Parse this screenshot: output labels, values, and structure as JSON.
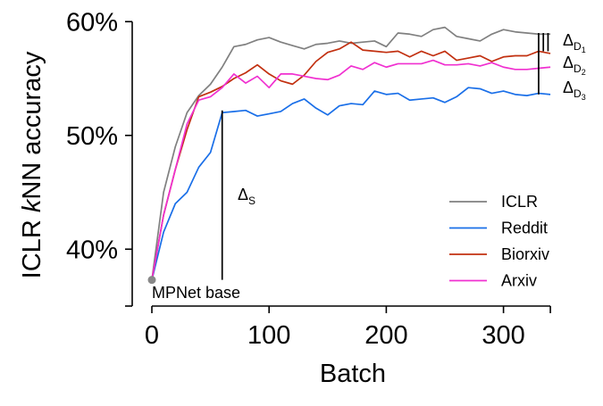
{
  "chart_data": {
    "type": "line",
    "xlabel": "Batch",
    "ylabel_parts": [
      "ICLR ",
      "k",
      "NN accuracy"
    ],
    "xlim": [
      0,
      340
    ],
    "ylim": [
      35,
      60
    ],
    "xticks": [
      0,
      100,
      200,
      300
    ],
    "xtick_labels": [
      "0",
      "100",
      "200",
      "300"
    ],
    "yticks": [
      40,
      50,
      60
    ],
    "ytick_labels": [
      "40%",
      "50%",
      "60%"
    ],
    "grid": false,
    "legend_position": "lower-right",
    "start_point": {
      "x": 0,
      "y": 37.3,
      "color": "#888888"
    },
    "annotations": {
      "base_label": "MPNet base",
      "delta_s": {
        "symbol": "Δ",
        "sub": "S",
        "x": 60,
        "y_from": 37.3,
        "y_to": 52.2
      },
      "delta_d1": {
        "symbol": "Δ",
        "sub": "D",
        "subsub": "1",
        "x": 338,
        "y_from": 57.4,
        "y_to": 59.0
      },
      "delta_d2": {
        "symbol": "Δ",
        "sub": "D",
        "subsub": "2",
        "x": 334,
        "y_from": 57.4,
        "y_to": 59.0
      },
      "delta_d3": {
        "symbol": "Δ",
        "sub": "D",
        "subsub": "3",
        "x": 330,
        "y_from": 53.6,
        "y_to": 59.0
      }
    },
    "series": [
      {
        "name": "ICLR",
        "color": "#808080",
        "x": [
          0,
          10,
          20,
          30,
          40,
          50,
          60,
          70,
          80,
          90,
          100,
          110,
          120,
          130,
          140,
          150,
          160,
          170,
          180,
          190,
          200,
          210,
          220,
          230,
          240,
          250,
          260,
          270,
          280,
          290,
          300,
          310,
          320,
          330,
          340
        ],
        "y": [
          37.3,
          45.0,
          49.0,
          52.0,
          53.5,
          54.5,
          56.0,
          57.8,
          58.0,
          58.4,
          58.6,
          58.2,
          57.9,
          57.6,
          58.0,
          58.1,
          58.3,
          58.1,
          58.2,
          58.3,
          57.8,
          59.0,
          58.9,
          58.7,
          59.3,
          59.5,
          58.7,
          58.5,
          58.3,
          58.9,
          59.3,
          59.1,
          59.0,
          58.9,
          58.9
        ]
      },
      {
        "name": "Reddit",
        "color": "#1a6fe8",
        "x": [
          0,
          10,
          20,
          30,
          40,
          50,
          60,
          70,
          80,
          90,
          100,
          110,
          120,
          130,
          140,
          150,
          160,
          170,
          180,
          190,
          200,
          210,
          220,
          230,
          240,
          250,
          260,
          270,
          280,
          290,
          300,
          310,
          320,
          330,
          340
        ],
        "y": [
          37.3,
          41.5,
          44.0,
          45.0,
          47.2,
          48.5,
          52.0,
          52.1,
          52.2,
          51.7,
          51.9,
          52.1,
          52.8,
          53.2,
          52.4,
          51.8,
          52.6,
          52.8,
          52.7,
          53.9,
          53.6,
          53.7,
          53.1,
          53.2,
          53.3,
          52.9,
          53.4,
          54.2,
          54.1,
          53.7,
          53.9,
          53.6,
          53.5,
          53.7,
          53.6
        ]
      },
      {
        "name": "Biorxiv",
        "color": "#c23010",
        "x": [
          0,
          10,
          20,
          30,
          40,
          50,
          60,
          70,
          80,
          90,
          100,
          110,
          120,
          130,
          140,
          150,
          160,
          170,
          180,
          190,
          200,
          210,
          220,
          230,
          240,
          250,
          260,
          270,
          280,
          290,
          300,
          310,
          320,
          330,
          340
        ],
        "y": [
          37.3,
          43.0,
          47.0,
          50.5,
          53.4,
          53.8,
          54.3,
          55.0,
          55.5,
          56.2,
          55.4,
          54.8,
          54.5,
          55.3,
          56.5,
          57.3,
          57.6,
          58.2,
          57.5,
          57.4,
          57.3,
          57.4,
          56.9,
          57.4,
          57.0,
          57.4,
          56.6,
          56.8,
          57.0,
          56.5,
          56.9,
          57.0,
          57.0,
          57.4,
          57.2
        ]
      },
      {
        "name": "Arxiv",
        "color": "#f030d0",
        "x": [
          0,
          10,
          20,
          30,
          40,
          50,
          60,
          70,
          80,
          90,
          100,
          110,
          120,
          130,
          140,
          150,
          160,
          170,
          180,
          190,
          200,
          210,
          220,
          230,
          240,
          250,
          260,
          270,
          280,
          290,
          300,
          310,
          320,
          330,
          340
        ],
        "y": [
          37.3,
          43.0,
          47.0,
          51.0,
          53.1,
          53.4,
          54.2,
          55.4,
          54.6,
          55.2,
          54.2,
          55.4,
          55.4,
          55.2,
          55.0,
          54.9,
          55.3,
          56.1,
          55.8,
          56.4,
          56.0,
          56.3,
          56.3,
          56.3,
          56.6,
          56.2,
          56.2,
          56.3,
          56.1,
          56.4,
          56.0,
          55.8,
          55.8,
          55.9,
          56.0
        ]
      }
    ]
  }
}
